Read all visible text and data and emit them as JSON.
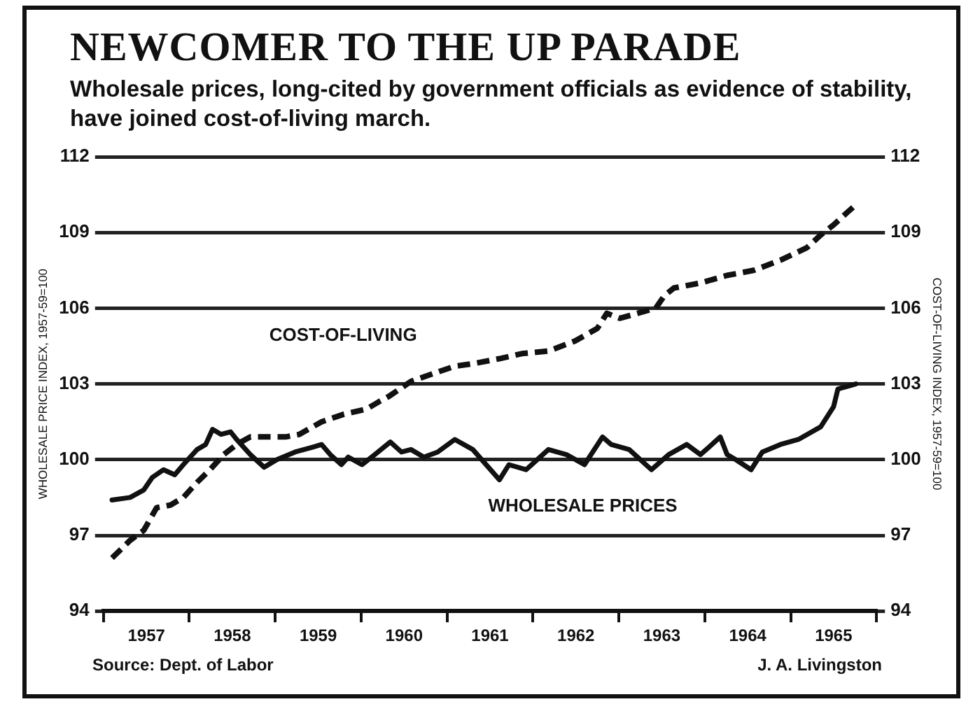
{
  "chart_data": {
    "type": "line",
    "title": "NEWCOMER TO THE UP PARADE",
    "subtitle": "Wholesale prices, long-cited by government officials as evidence of stability, have joined cost-of-living march.",
    "ylabel": "WHOLESALE PRICE INDEX, 1957-59=100",
    "y2label": "COST-OF-LIVING INDEX, 1957-59=100",
    "annotations": [
      "Source: Dept. of Labor",
      "J. A. Livingston"
    ],
    "xlim": [
      1957,
      1966
    ],
    "xticks": [
      {
        "value": 1957,
        "label": null
      },
      {
        "value": 1957.5,
        "label": "1957"
      },
      {
        "value": 1958,
        "label": null
      },
      {
        "value": 1958.5,
        "label": "1958"
      },
      {
        "value": 1959,
        "label": null
      },
      {
        "value": 1959.5,
        "label": "1959"
      },
      {
        "value": 1960,
        "label": null
      },
      {
        "value": 1960.5,
        "label": "1960"
      },
      {
        "value": 1961,
        "label": null
      },
      {
        "value": 1961.5,
        "label": "1961"
      },
      {
        "value": 1962,
        "label": null
      },
      {
        "value": 1962.5,
        "label": "1962"
      },
      {
        "value": 1963,
        "label": null
      },
      {
        "value": 1963.5,
        "label": "1963"
      },
      {
        "value": 1964,
        "label": null
      },
      {
        "value": 1964.5,
        "label": "1964"
      },
      {
        "value": 1965,
        "label": null
      },
      {
        "value": 1965.5,
        "label": "1965"
      },
      {
        "value": 1966,
        "label": null
      }
    ],
    "ylim": [
      94,
      112
    ],
    "yticks": [
      94,
      97,
      100,
      103,
      106,
      109,
      112
    ],
    "y2lim": [
      94,
      112
    ],
    "y2ticks": [
      94,
      97,
      100,
      103,
      106,
      109,
      112
    ],
    "grid": "y",
    "legend": false,
    "marker": "none",
    "series": [
      {
        "name": "COST-OF-LIVING",
        "color": "#111111",
        "line_style": "dashed",
        "x": [
          1957.1,
          1957.31,
          1957.47,
          1957.62,
          1957.78,
          1957.93,
          1958.09,
          1958.24,
          1958.4,
          1958.55,
          1958.71,
          1958.92,
          1959.12,
          1959.28,
          1959.54,
          1959.8,
          1960.06,
          1960.21,
          1960.32,
          1960.58,
          1960.83,
          1961.09,
          1961.3,
          1961.61,
          1961.87,
          1962.18,
          1962.49,
          1962.75,
          1962.86,
          1963.01,
          1963.22,
          1963.43,
          1963.53,
          1963.64,
          1963.95,
          1964.26,
          1964.57,
          1964.88,
          1965.19,
          1965.35,
          1965.5,
          1965.66,
          1965.76
        ],
        "values": [
          96.1,
          96.8,
          97.2,
          98.1,
          98.2,
          98.5,
          99.1,
          99.6,
          100.2,
          100.6,
          100.9,
          100.9,
          100.9,
          101.0,
          101.5,
          101.8,
          102.0,
          102.3,
          102.5,
          103.1,
          103.4,
          103.7,
          103.8,
          104.0,
          104.2,
          104.3,
          104.7,
          105.2,
          105.8,
          105.6,
          105.8,
          106.0,
          106.5,
          106.8,
          107.0,
          107.3,
          107.5,
          107.9,
          108.4,
          108.9,
          109.3,
          109.8,
          110.1
        ]
      },
      {
        "name": "WHOLESALE PRICES",
        "color": "#111111",
        "line_style": "solid",
        "x": [
          1957.1,
          1957.31,
          1957.47,
          1957.57,
          1957.7,
          1957.83,
          1957.93,
          1958.09,
          1958.19,
          1958.27,
          1958.37,
          1958.48,
          1958.55,
          1958.71,
          1958.87,
          1959.02,
          1959.23,
          1959.44,
          1959.54,
          1959.64,
          1959.77,
          1959.85,
          1960.01,
          1960.16,
          1960.34,
          1960.47,
          1960.58,
          1960.73,
          1960.89,
          1961.09,
          1961.3,
          1961.61,
          1961.72,
          1961.92,
          1962.18,
          1962.39,
          1962.6,
          1962.81,
          1962.91,
          1963.12,
          1963.38,
          1963.58,
          1963.79,
          1963.95,
          1964.05,
          1964.18,
          1964.26,
          1964.36,
          1964.54,
          1964.67,
          1964.88,
          1965.09,
          1965.35,
          1965.5,
          1965.55,
          1965.66,
          1965.76
        ],
        "values": [
          98.4,
          98.5,
          98.8,
          99.3,
          99.6,
          99.4,
          99.8,
          100.4,
          100.6,
          101.2,
          101.0,
          101.1,
          100.8,
          100.2,
          99.7,
          100.0,
          100.3,
          100.5,
          100.6,
          100.2,
          99.8,
          100.1,
          99.8,
          100.2,
          100.7,
          100.3,
          100.4,
          100.1,
          100.3,
          100.8,
          100.4,
          99.2,
          99.8,
          99.6,
          100.4,
          100.2,
          99.8,
          100.9,
          100.6,
          100.4,
          99.6,
          100.2,
          100.6,
          100.2,
          100.5,
          100.9,
          100.2,
          100.0,
          99.6,
          100.3,
          100.6,
          100.8,
          101.3,
          102.1,
          102.8,
          102.9,
          103.0
        ]
      }
    ]
  }
}
